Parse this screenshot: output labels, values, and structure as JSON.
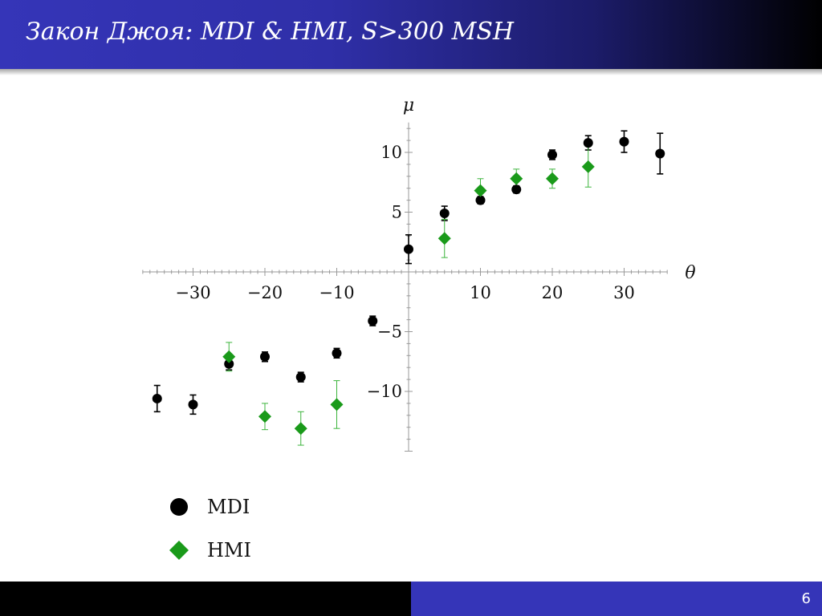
{
  "slide": {
    "title": "Закон Джоя: MDI & HMI, S>300 MSH",
    "page_number": "6"
  },
  "colors": {
    "header_blue": "#3535b8",
    "mdi": "#000000",
    "hmi": "#1a9a1a",
    "hmi_error": "#3cb43c"
  },
  "chart_data": {
    "type": "scatter",
    "xlabel": "θ",
    "ylabel": "μ",
    "xlim": [
      -37,
      36
    ],
    "ylim": [
      -15,
      12.5
    ],
    "xticks": [
      -30,
      -20,
      -10,
      10,
      20,
      30
    ],
    "yticks": [
      -10,
      -5,
      5,
      10
    ],
    "xtick_labels": [
      "−30",
      "−20",
      "−10",
      "10",
      "20",
      "30"
    ],
    "ytick_labels": [
      "−10",
      "−5",
      "5",
      "10"
    ],
    "legend_position": "bottom-left",
    "series": [
      {
        "name": "MDI",
        "marker": "circle",
        "color": "#000000",
        "x": [
          -35,
          -30,
          -25,
          -20,
          -15,
          -10,
          -5,
          0,
          5,
          10,
          15,
          20,
          25,
          30,
          35
        ],
        "y": [
          -10.6,
          -11.1,
          -7.7,
          -7.1,
          -8.8,
          -6.8,
          -4.1,
          1.9,
          4.9,
          6.0,
          6.9,
          9.8,
          10.8,
          10.9,
          9.9
        ],
        "err": [
          1.1,
          0.8,
          0.5,
          0.4,
          0.4,
          0.4,
          0.4,
          1.2,
          0.6,
          0.3,
          0.3,
          0.4,
          0.6,
          0.9,
          1.7
        ]
      },
      {
        "name": "HMI",
        "marker": "diamond",
        "color": "#1a9a1a",
        "x": [
          -25,
          -20,
          -15,
          -10,
          5,
          10,
          15,
          20,
          25
        ],
        "y": [
          -7.1,
          -12.1,
          -13.1,
          -11.1,
          2.8,
          6.8,
          7.8,
          7.8,
          8.8
        ],
        "err": [
          1.2,
          1.1,
          1.4,
          2.0,
          1.6,
          1.0,
          0.8,
          0.8,
          1.7
        ]
      }
    ]
  }
}
